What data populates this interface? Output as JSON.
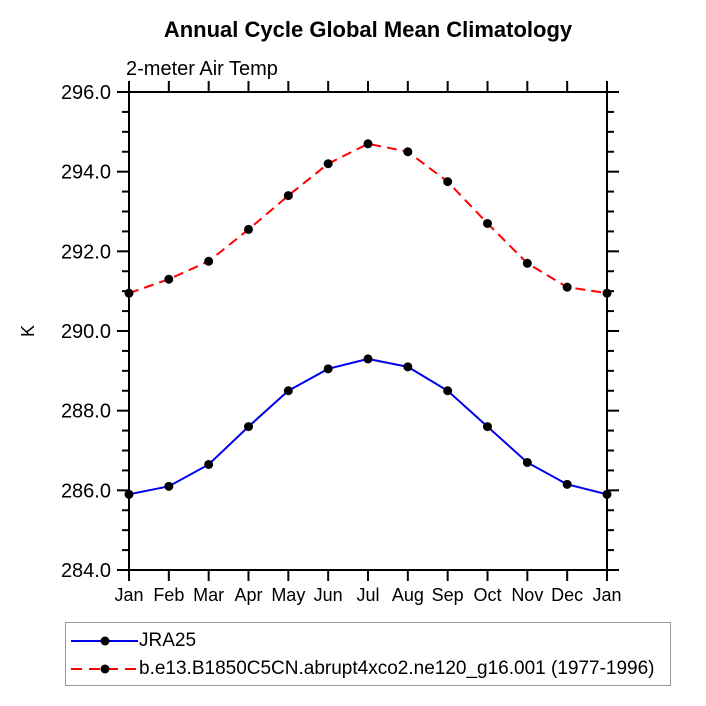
{
  "chart_data": {
    "type": "line",
    "title": "Annual Cycle Global Mean Climatology",
    "subtitle": "2-meter Air Temp",
    "ylabel": "K",
    "categories": [
      "Jan",
      "Feb",
      "Mar",
      "Apr",
      "May",
      "Jun",
      "Jul",
      "Aug",
      "Sep",
      "Oct",
      "Nov",
      "Dec",
      "Jan"
    ],
    "ylim": [
      284.0,
      296.0
    ],
    "ytick_step": 2.0,
    "ytick_labels": [
      "296.0",
      "294.0",
      "292.0",
      "290.0",
      "288.0",
      "286.0",
      "284.0"
    ],
    "yminor_step": 0.5,
    "grid": false,
    "legend_position": "bottom-left",
    "series": [
      {
        "name": "JRA25",
        "color": "#0000ee",
        "line_style": "solid",
        "marker": "filled-circle",
        "marker_color": "#000000",
        "values": [
          285.9,
          286.1,
          286.65,
          287.6,
          288.5,
          289.05,
          289.3,
          289.1,
          288.5,
          287.6,
          286.7,
          286.15,
          285.9
        ]
      },
      {
        "name": "b.e13.B1850C5CN.abrupt4xco2.ne120_g16.001 (1977-1996)",
        "color": "#ff0000",
        "line_style": "dashed",
        "marker": "filled-circle",
        "marker_color": "#000000",
        "values": [
          290.95,
          291.3,
          291.75,
          292.55,
          293.4,
          294.2,
          294.7,
          294.5,
          293.75,
          292.7,
          291.7,
          291.1,
          290.95
        ]
      }
    ]
  }
}
